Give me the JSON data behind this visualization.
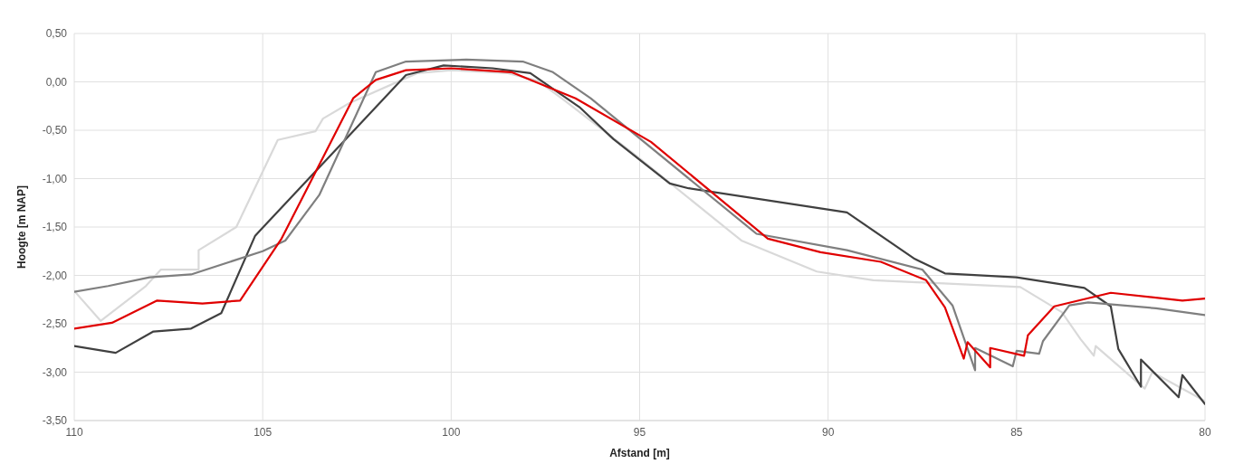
{
  "chart_data": {
    "type": "line",
    "xlabel": "Afstand [m]",
    "ylabel": "Hoogte [m NAP]",
    "xlim": [
      110,
      80
    ],
    "xticks": [
      110,
      105,
      100,
      95,
      90,
      85,
      80
    ],
    "ylim": [
      -3.5,
      0.5
    ],
    "yticks": [
      {
        "value": 0.5,
        "label": "0,50"
      },
      {
        "value": 0,
        "label": "0,00"
      },
      {
        "value": -0.5,
        "label": "-0,50"
      },
      {
        "value": -1,
        "label": "-1,00"
      },
      {
        "value": -1.5,
        "label": "-1,50"
      },
      {
        "value": -2,
        "label": "-2,00"
      },
      {
        "value": -2.5,
        "label": "-2,50"
      },
      {
        "value": -3,
        "label": "-3,00"
      },
      {
        "value": -3.5,
        "label": "-3,50"
      }
    ],
    "grid": true,
    "marker": "none",
    "line_style": "solid",
    "series": [
      {
        "color": "#d9d9d9",
        "x": [
          110,
          109.3,
          108.1,
          107.7,
          106.7,
          106.7,
          105.7,
          104.6,
          103.6,
          103.4,
          102.7,
          100.9,
          100,
          98.5,
          97.7,
          97,
          95.1,
          92.3,
          90.3,
          88.8,
          84.9,
          83.8,
          83.3,
          82.95,
          82.9,
          81.6,
          81.4,
          80
        ],
        "values": [
          -2.16,
          -2.47,
          -2.11,
          -1.94,
          -1.94,
          -1.74,
          -1.5,
          -0.6,
          -0.51,
          -0.38,
          -0.22,
          0.09,
          0.12,
          0.09,
          0.01,
          -0.19,
          -0.76,
          -1.64,
          -1.96,
          -2.05,
          -2.12,
          -2.38,
          -2.66,
          -2.83,
          -2.73,
          -3.17,
          -3,
          -3.3
        ]
      },
      {
        "color": "#404040",
        "x": [
          110,
          108.9,
          107.9,
          106.9,
          106.1,
          105.2,
          101.2,
          100.2,
          98.9,
          97.9,
          96.6,
          95.7,
          94.2,
          93.7,
          89.5,
          87.7,
          86.9,
          85,
          83.2,
          82.5,
          82.3,
          81.7,
          81.7,
          80.7,
          80.6,
          80
        ],
        "values": [
          -2.73,
          -2.8,
          -2.58,
          -2.55,
          -2.39,
          -1.59,
          0.07,
          0.17,
          0.14,
          0.09,
          -0.26,
          -0.59,
          -1.05,
          -1.1,
          -1.35,
          -1.83,
          -1.98,
          -2.02,
          -2.13,
          -2.32,
          -2.76,
          -3.15,
          -2.87,
          -3.26,
          -3.03,
          -3.33
        ]
      },
      {
        "color": "#7f7f7f",
        "x": [
          110,
          109.1,
          108,
          106.9,
          105,
          104.4,
          103.5,
          102,
          101.2,
          99.6,
          98.1,
          97.3,
          96.3,
          91.9,
          89.5,
          87.5,
          86.7,
          86.1,
          86.1,
          85.1,
          85,
          84.4,
          84.3,
          83.6,
          83.1,
          81.3,
          80
        ],
        "values": [
          -2.17,
          -2.11,
          -2.02,
          -1.99,
          -1.75,
          -1.64,
          -1.17,
          0.1,
          0.21,
          0.23,
          0.21,
          0.1,
          -0.17,
          -1.57,
          -1.74,
          -1.94,
          -2.31,
          -2.98,
          -2.75,
          -2.94,
          -2.78,
          -2.81,
          -2.68,
          -2.31,
          -2.28,
          -2.34,
          -2.41
        ]
      },
      {
        "color": "#e00000",
        "x": [
          110,
          109,
          107.8,
          106.6,
          105.6,
          104.5,
          102.6,
          102,
          101.2,
          100,
          98.4,
          96.7,
          94.7,
          91.6,
          90.2,
          88.6,
          87.4,
          86.9,
          86.4,
          86.3,
          85.7,
          85.7,
          84.8,
          84.7,
          84,
          82.5,
          80.6,
          80
        ],
        "values": [
          -2.55,
          -2.49,
          -2.26,
          -2.29,
          -2.26,
          -1.62,
          -0.17,
          0.02,
          0.12,
          0.14,
          0.1,
          -0.17,
          -0.62,
          -1.62,
          -1.76,
          -1.86,
          -2.05,
          -2.33,
          -2.86,
          -2.69,
          -2.95,
          -2.75,
          -2.83,
          -2.62,
          -2.32,
          -2.18,
          -2.26,
          -2.24
        ]
      }
    ]
  }
}
